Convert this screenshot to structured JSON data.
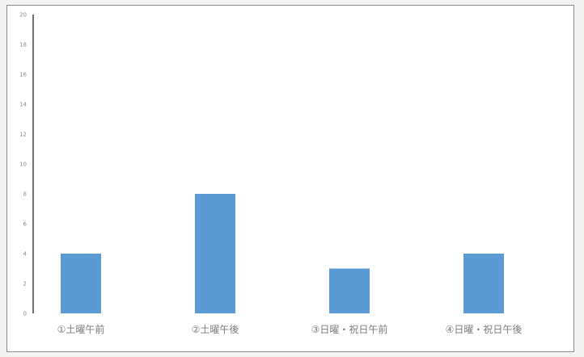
{
  "chart_data": {
    "type": "bar",
    "categories": [
      "①土曜午前",
      "②土曜午後",
      "③日曜・祝日午前",
      "④日曜・祝日午後"
    ],
    "values": [
      4,
      8,
      3,
      4
    ],
    "yticks": [
      "0",
      "2",
      "4",
      "6",
      "8",
      "10",
      "12",
      "14",
      "16",
      "18",
      "20"
    ],
    "ylim": [
      0,
      20
    ],
    "grid": false,
    "bar_color": "#5b9bd5",
    "axis_color": "#404040"
  }
}
